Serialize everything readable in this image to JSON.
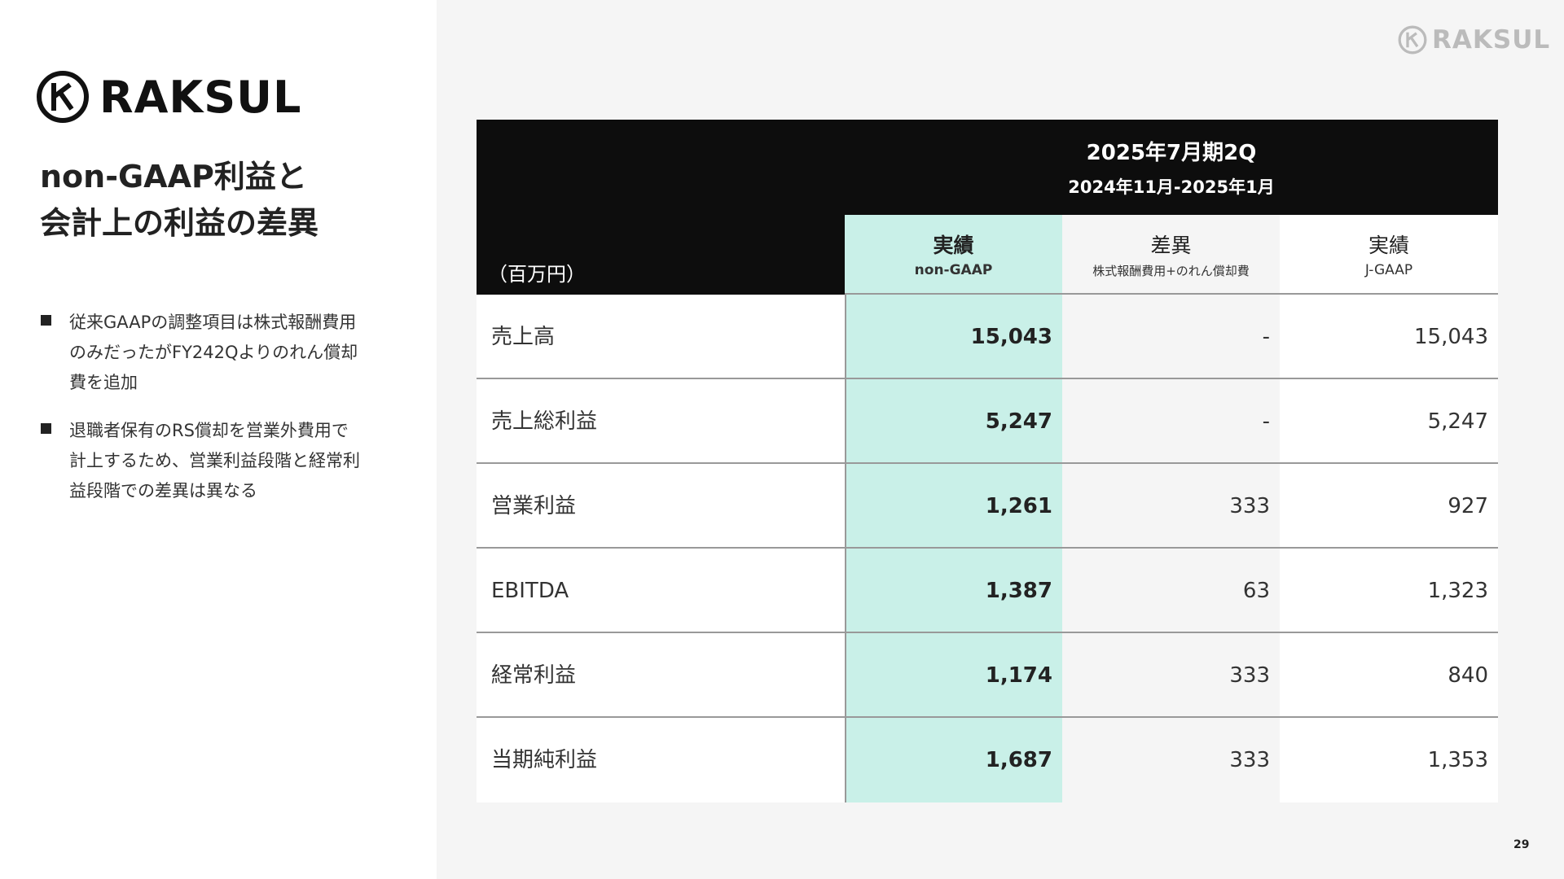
{
  "logo": {
    "brand": "RAKSUL"
  },
  "corner_logo": {
    "brand": "RAKSUL"
  },
  "title": {
    "lines": [
      "non-GAAP利益と",
      "会計上の利益の差異"
    ]
  },
  "bullets": [
    {
      "lines": [
        "従来GAAPの調整項目は株式報酬費用",
        "のみだったがFY242Qよりのれん償却",
        "費を追加"
      ]
    },
    {
      "lines": [
        "退職者保有のRS償却を営業外費用で",
        "計上するため、営業利益段階と経常利",
        "益段階での差異は異なる"
      ]
    }
  ],
  "table": {
    "period": "2025年7月期2Q",
    "period_range": "2024年11月-2025年1月",
    "unit": "（百万円）",
    "columns": [
      {
        "title": "実績",
        "sub": "non-GAAP"
      },
      {
        "title": "差異",
        "sub": "株式報酬費用+のれん償却費"
      },
      {
        "title": "実績",
        "sub": "J-GAAP"
      }
    ],
    "rows": [
      [
        "売上高",
        "15,043",
        "-",
        "15,043"
      ],
      [
        "売上総利益",
        "5,247",
        "-",
        "5,247"
      ],
      [
        "営業利益",
        "1,261",
        "333",
        "927"
      ],
      [
        "EBITDA",
        "1,387",
        "63",
        "1,323"
      ],
      [
        "経常利益",
        "1,174",
        "333",
        "840"
      ],
      [
        "当期純利益",
        "1,687",
        "333",
        "1,353"
      ]
    ]
  },
  "page_number": "29"
}
